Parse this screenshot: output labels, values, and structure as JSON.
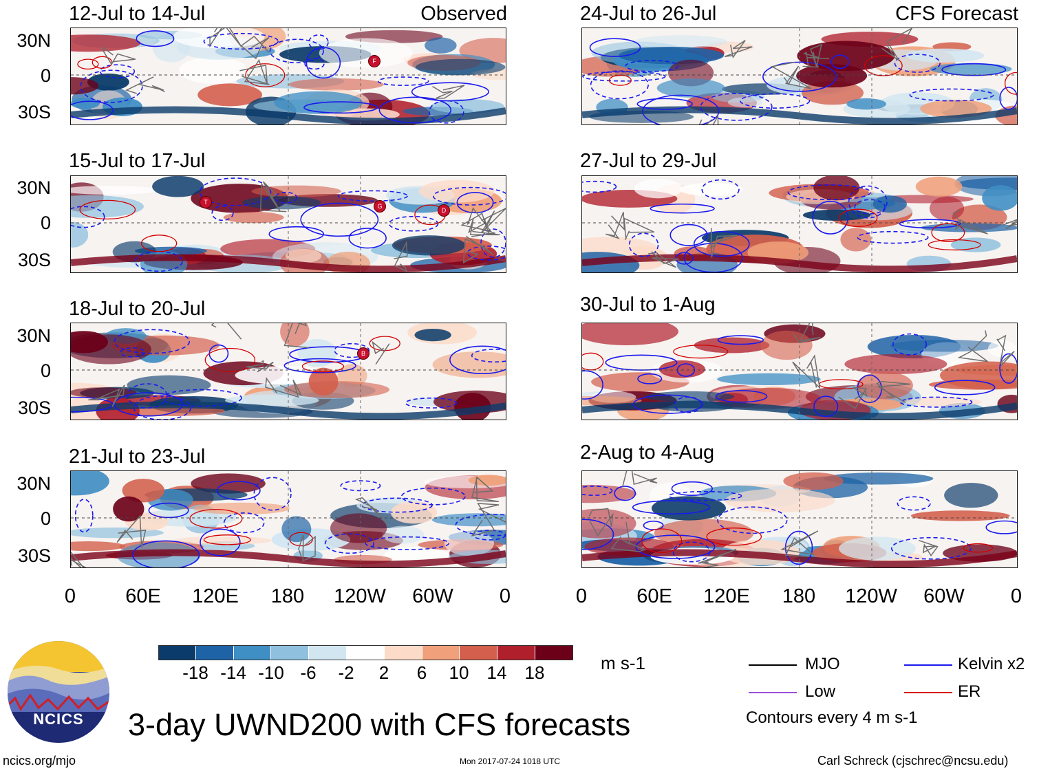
{
  "header": {
    "observed_tag": "Observed",
    "forecast_tag": "CFS Forecast"
  },
  "panels": [
    {
      "period": "12-Jul to 14-Jul",
      "group": "Observed",
      "storms": [
        "F"
      ]
    },
    {
      "period": "15-Jul to 17-Jul",
      "group": "Observed",
      "storms": [
        "T",
        "G",
        "D"
      ]
    },
    {
      "period": "18-Jul to 20-Jul",
      "group": "Observed",
      "storms": [
        "B"
      ]
    },
    {
      "period": "21-Jul to 23-Jul",
      "group": "Observed",
      "storms": []
    },
    {
      "period": "24-Jul to 26-Jul",
      "group": "CFS Forecast",
      "storms": []
    },
    {
      "period": "27-Jul to 29-Jul",
      "group": "CFS Forecast",
      "storms": []
    },
    {
      "period": "30-Jul to 1-Aug",
      "group": "CFS Forecast",
      "storms": []
    },
    {
      "period": "2-Aug to 4-Aug",
      "group": "CFS Forecast",
      "storms": []
    }
  ],
  "axes": {
    "lat_labels": [
      "30N",
      "0",
      "30S"
    ],
    "lon_labels": [
      "0",
      "60E",
      "120E",
      "180",
      "120W",
      "60W",
      "0"
    ]
  },
  "colorbar": {
    "colors": [
      "#0b3b6a",
      "#1e63a6",
      "#3f8ec4",
      "#8fc1de",
      "#d2e6f1",
      "#ffffff",
      "#fcdbc9",
      "#f0a07a",
      "#d35f4c",
      "#b01f2c",
      "#6b0018"
    ],
    "labels": [
      "-18",
      "-14",
      "-10",
      "-6",
      "-2",
      "2",
      "6",
      "10",
      "14",
      "18"
    ],
    "units": "m s-1"
  },
  "legend": {
    "items": [
      {
        "label": "MJO",
        "color": "#000000"
      },
      {
        "label": "Kelvin x2",
        "color": "#1a1aee"
      },
      {
        "label": "Low",
        "color": "#9b4fd6"
      },
      {
        "label": "ER",
        "color": "#d40000"
      }
    ],
    "contour_note": "Contours every 4 m s-1"
  },
  "footer": {
    "main_title": "3-day UWND200 with CFS forecasts",
    "logo_text": "NCICS",
    "url": "ncics.org/mjo",
    "timestamp": "Mon 2017-07-24 1018 UTC",
    "author": "Carl Schreck (cjschrec@ncsu.edu)"
  }
}
